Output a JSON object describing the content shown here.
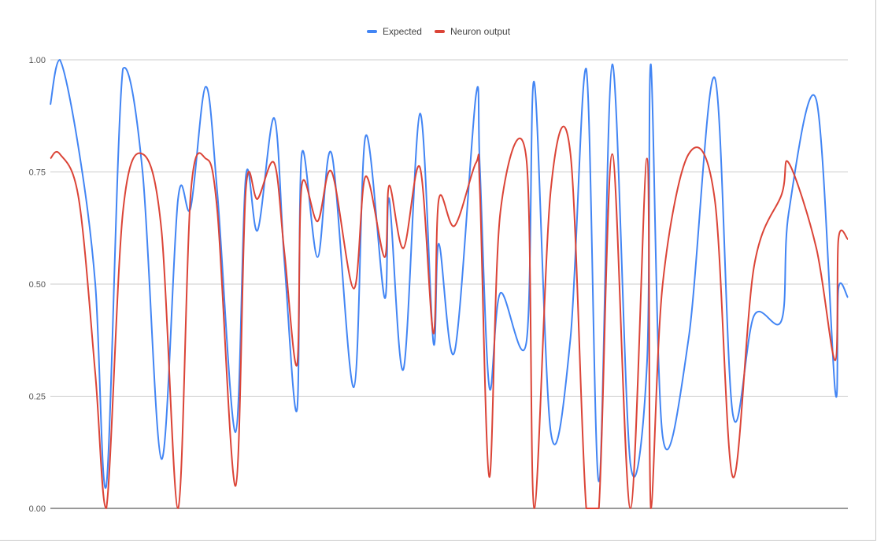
{
  "chart_data": {
    "type": "line",
    "title": "",
    "xlabel": "",
    "ylabel": "",
    "ylim": [
      0,
      1
    ],
    "yticks": [
      "0.00",
      "0.25",
      "0.50",
      "0.75",
      "1.00"
    ],
    "legend_position": "top",
    "grid": true,
    "x": [
      0,
      12,
      36,
      57,
      71,
      92,
      117,
      141,
      162,
      178,
      197,
      212,
      235,
      248,
      263,
      284,
      297,
      313,
      319,
      339,
      357,
      385,
      400,
      424,
      430,
      448,
      469,
      486,
      493,
      513,
      540,
      545,
      557,
      571,
      604,
      614,
      635,
      660,
      680,
      696,
      713,
      736,
      757,
      762,
      777,
      810,
      843,
      866,
      893,
      928,
      937,
      972,
      996,
      1000,
      1012
    ],
    "series": [
      {
        "name": "Expected",
        "color": "#4285f4",
        "values": [
          0.9,
          1.0,
          0.8,
          0.5,
          0.05,
          0.98,
          0.75,
          0.11,
          0.69,
          0.67,
          0.94,
          0.7,
          0.17,
          0.74,
          0.62,
          0.87,
          0.55,
          0.22,
          0.79,
          0.56,
          0.79,
          0.27,
          0.83,
          0.47,
          0.69,
          0.31,
          0.88,
          0.37,
          0.59,
          0.35,
          0.92,
          0.76,
          0.27,
          0.48,
          0.37,
          0.95,
          0.17,
          0.38,
          0.98,
          0.06,
          0.99,
          0.1,
          0.32,
          0.99,
          0.16,
          0.38,
          0.96,
          0.21,
          0.43,
          0.42,
          0.66,
          0.91,
          0.26,
          0.49,
          0.47
        ]
      },
      {
        "name": "Neuron output",
        "color": "#db4437",
        "values": [
          0.78,
          0.79,
          0.69,
          0.3,
          0.0,
          0.66,
          0.79,
          0.62,
          0.0,
          0.7,
          0.78,
          0.66,
          0.05,
          0.71,
          0.69,
          0.77,
          0.57,
          0.32,
          0.72,
          0.64,
          0.75,
          0.49,
          0.74,
          0.56,
          0.72,
          0.58,
          0.76,
          0.39,
          0.69,
          0.63,
          0.77,
          0.71,
          0.07,
          0.66,
          0.78,
          0.0,
          0.71,
          0.79,
          0.0,
          0.0,
          0.79,
          0.0,
          0.78,
          0.0,
          0.5,
          0.79,
          0.69,
          0.07,
          0.54,
          0.7,
          0.77,
          0.58,
          0.33,
          0.6,
          0.6
        ]
      }
    ]
  }
}
